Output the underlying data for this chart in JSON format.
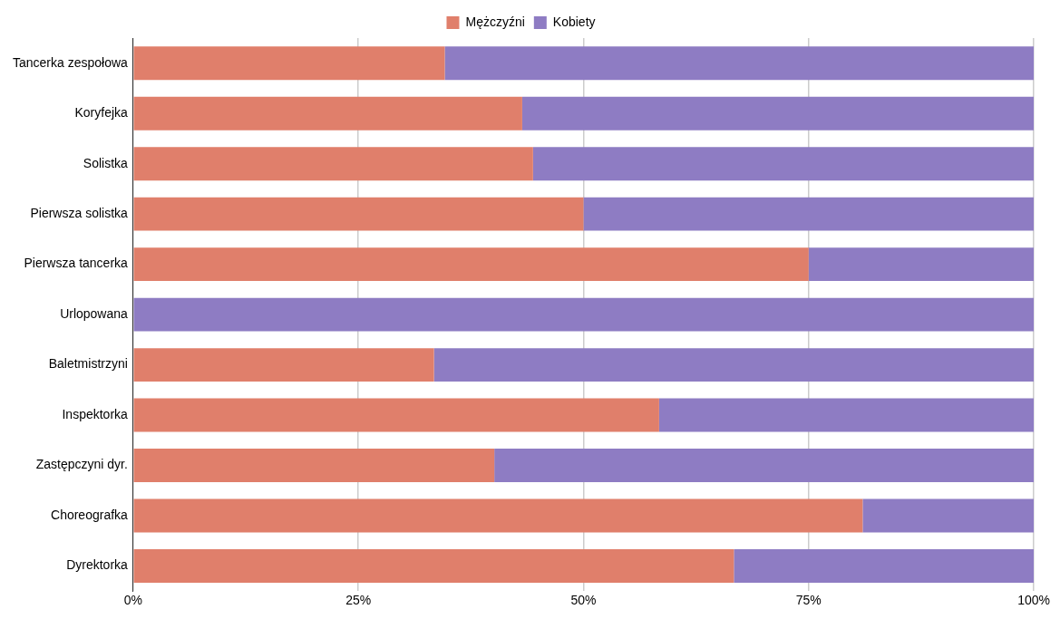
{
  "chart_data": {
    "type": "bar",
    "orientation": "horizontal",
    "stacked": true,
    "categories": [
      "Tancerka zespołowa",
      "Koryfejka",
      "Solistka",
      "Pierwsza solistka",
      "Pierwsza tancerka",
      "Urlopowana",
      "Baletmistrzyni",
      "Inspektorka",
      "Zastępczyni dyr.",
      "Choreografka",
      "Dyrektorka"
    ],
    "series": [
      {
        "name": "Mężczyźni",
        "color": "#e07f6b",
        "values": [
          34.6,
          43.2,
          44.4,
          50,
          75,
          0,
          33.4,
          58.4,
          40.1,
          81,
          66.7
        ]
      },
      {
        "name": "Kobiety",
        "color": "#8e7cc3",
        "values": [
          65.4,
          56.8,
          55.6,
          50,
          25,
          100,
          66.6,
          41.6,
          59.9,
          19,
          33.3
        ]
      }
    ],
    "xlim": [
      0,
      100
    ],
    "xticks": [
      {
        "value": 0,
        "label": "0%"
      },
      {
        "value": 25,
        "label": "25%"
      },
      {
        "value": 50,
        "label": "50%"
      },
      {
        "value": 75,
        "label": "75%"
      },
      {
        "value": 100,
        "label": "100%"
      }
    ],
    "grid": "x",
    "legend": "top"
  }
}
